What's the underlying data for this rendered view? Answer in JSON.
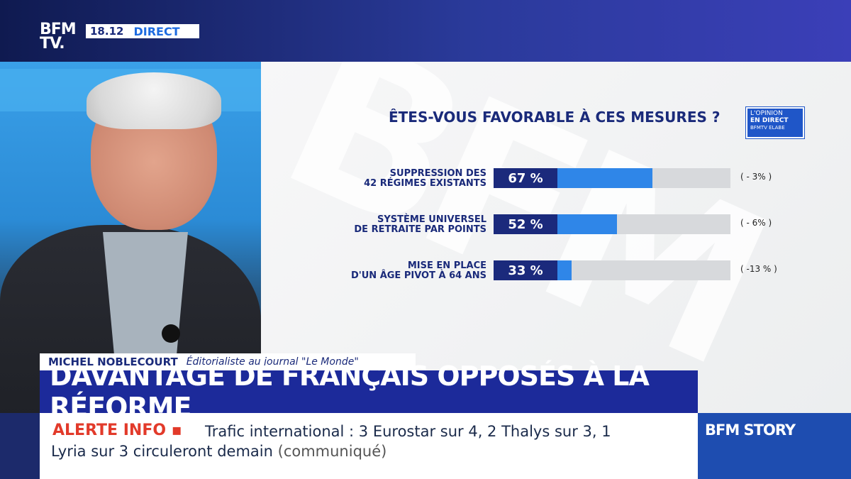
{
  "channel": {
    "logo": "BFM\nTV.",
    "time": "18.12",
    "live": "DIRECT"
  },
  "poll": {
    "question": "ÊTES-VOUS FAVORABLE À CES MESURES ?",
    "badge": {
      "line1": "L'OPINION",
      "line2": "EN DIRECT",
      "line3": "BFMTV ELABE"
    },
    "rows": [
      {
        "label": "SUPPRESSION DES\n42 RÉGIMES EXISTANTS",
        "percent": 67,
        "percent_text": "67 %",
        "delta": "( - 3% )"
      },
      {
        "label": "SYSTÈME UNIVERSEL\nDE RETRAITE PAR POINTS",
        "percent": 52,
        "percent_text": "52 %",
        "delta": "( - 6% )"
      },
      {
        "label": "MISE EN PLACE\nD'UN ÂGE PIVOT À 64 ANS",
        "percent": 33,
        "percent_text": "33 %",
        "delta": "( -13 % )"
      }
    ],
    "watermark": "BFM"
  },
  "lower_third": {
    "name": "MICHEL NOBLECOURT",
    "role": "Éditorialiste au journal \"Le Monde\""
  },
  "headline": "DAVANTAGE DE FRANÇAIS OPPOSÉS À LA RÉFORME",
  "ticker": {
    "alert": "ALERTE INFO ▪",
    "text_line1": "Trafic international : 3 Eurostar sur 4, 2 Thalys sur 3, 1",
    "text_line2": "Lyria sur 3 circuleront demain",
    "source": "(communiqué)"
  },
  "program": "BFM STORY",
  "colors": {
    "navy": "#1b2a7c",
    "bar_blue": "#2f86e8",
    "alert_red": "#e23a2a",
    "headline_blue": "#1c2a9a"
  }
}
